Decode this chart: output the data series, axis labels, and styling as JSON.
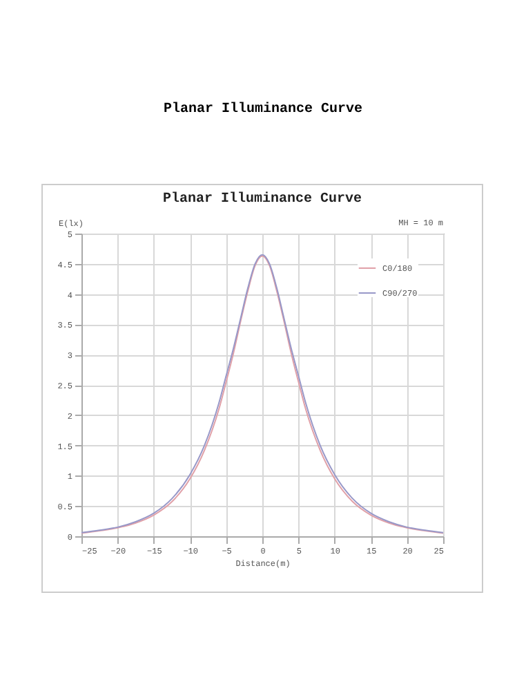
{
  "chart_data": {
    "type": "line",
    "title": "Planar Illuminance Curve",
    "subtitle": "Planar Illuminance Curve",
    "xlabel": "Distance(m)",
    "ylabel": "E(lx)",
    "annotations": [
      "MH = 10 m"
    ],
    "x": [
      -25,
      -22.5,
      -20,
      -17.5,
      -15,
      -12.5,
      -10,
      -8,
      -6,
      -5,
      -4,
      -3,
      -2,
      -1,
      0,
      1,
      2,
      3,
      4,
      5,
      6,
      8,
      10,
      12.5,
      15,
      17.5,
      20,
      22.5,
      25
    ],
    "series": [
      {
        "name": "C0/180",
        "color": "#e0a0a8",
        "values": [
          0.05,
          0.09,
          0.14,
          0.22,
          0.35,
          0.57,
          0.95,
          1.42,
          2.1,
          2.55,
          3.02,
          3.55,
          4.05,
          4.47,
          4.63,
          4.47,
          4.05,
          3.55,
          3.02,
          2.55,
          2.1,
          1.42,
          0.95,
          0.57,
          0.35,
          0.22,
          0.14,
          0.09,
          0.05
        ]
      },
      {
        "name": "C90/270",
        "color": "#9898c8",
        "values": [
          0.06,
          0.1,
          0.15,
          0.24,
          0.38,
          0.62,
          1.02,
          1.5,
          2.2,
          2.65,
          3.1,
          3.6,
          4.1,
          4.5,
          4.65,
          4.5,
          4.1,
          3.6,
          3.1,
          2.65,
          2.2,
          1.5,
          1.02,
          0.62,
          0.38,
          0.24,
          0.15,
          0.1,
          0.06
        ]
      }
    ],
    "xlim": [
      -25,
      25
    ],
    "xticks": [
      -25,
      -20,
      -15,
      -10,
      -5,
      0,
      5,
      10,
      15,
      20,
      25
    ],
    "ylim": [
      0,
      5
    ],
    "yticks": [
      0,
      0.5,
      1,
      1.5,
      2,
      2.5,
      3,
      3.5,
      4,
      4.5,
      5
    ],
    "grid": true,
    "legend": "top right",
    "marker": "none",
    "line_style": "solid"
  }
}
